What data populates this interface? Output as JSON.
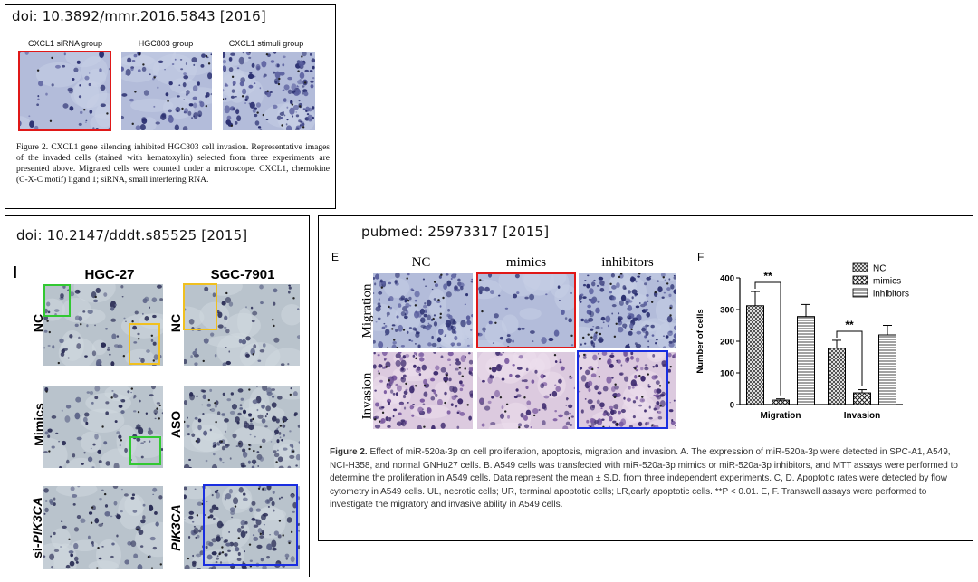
{
  "panel1": {
    "doi": "doi: 10.3892/mmr.2016.5843 [2016]",
    "labels": [
      "CXCL1 siRNA group",
      "HGC803 group",
      "CXCL1 stimuli group"
    ],
    "caption": "Figure 2. CXCL1 gene silencing inhibited HGC803 cell invasion. Representative images of the invaded cells (stained with hematoxylin) selected from three experiments are presented above. Migrated cells were counted under a microscope. CXCL1, chemokine (C-X-C motif) ligand 1; siRNA, small interfering RNA."
  },
  "panel2": {
    "doi": "doi: 10.2147/dddt.s85525 [2015]",
    "panel_letter": "I",
    "columns": [
      "HGC-27",
      "SGC-7901"
    ],
    "rows_left": [
      "NC",
      "Mimics"
    ],
    "rows_left_last_prefix": "si-",
    "rows_left_last_italic": "PIK3CA",
    "rows_right": [
      "NC",
      "ASO",
      "PIK3CA"
    ]
  },
  "panel3": {
    "doi": "pubmed: 25973317 [2015]",
    "letter_e": "E",
    "letter_f": "F",
    "columns": [
      "NC",
      "mimics",
      "inhibitors"
    ],
    "rows": [
      "Migration",
      "Invasion"
    ],
    "caption_label": "Figure 2.",
    "caption_text": " Effect of miR-520a-3p on cell proliferation, apoptosis, migration and invasion. A. The expression of miR-520a-3p were detected in SPC-A1, A549, NCI-H358, and normal GNHu27 cells. B. A549 cells was transfected with miR-520a-3p mimics or miR-520a-3p inhibitors, and MTT assays were performed to determine the proliferation in A549 cells. Data represent the mean ± S.D. from three independent experiments. C, D. Apoptotic rates were detected by flow cytometry in A549 cells. UL, necrotic cells; UR, terminal apoptotic cells; LR,early apoptotic cells. **P < 0.01. E, F. Transwell assays were performed to investigate the migratory and invasive ability in A549 cells."
  },
  "chart_data": {
    "type": "bar",
    "categories": [
      "Migration",
      "Invasion"
    ],
    "series": [
      {
        "name": "NC",
        "values": [
          312,
          178
        ],
        "errors": [
          45,
          25
        ],
        "pattern": "checker"
      },
      {
        "name": "mimics",
        "values": [
          14,
          37
        ],
        "errors": [
          4,
          10
        ],
        "pattern": "crosshatch"
      },
      {
        "name": "inhibitors",
        "values": [
          278,
          220
        ],
        "errors": [
          38,
          30
        ],
        "pattern": "hlines"
      }
    ],
    "ylabel": "Number of cells",
    "yticks": [
      "0",
      "100",
      "200",
      "300",
      "400"
    ],
    "ylim": [
      0,
      400
    ],
    "significance": [
      "**",
      "**"
    ],
    "legend_position": "top-right"
  },
  "colors": {
    "red_box": "#e01818",
    "green_box": "#32c832",
    "yellow_box": "#f0c020",
    "blue_box": "#1a2ee0",
    "blue_tissue": "#aeb8d6",
    "purple_tissue": "#d9bfdc"
  }
}
